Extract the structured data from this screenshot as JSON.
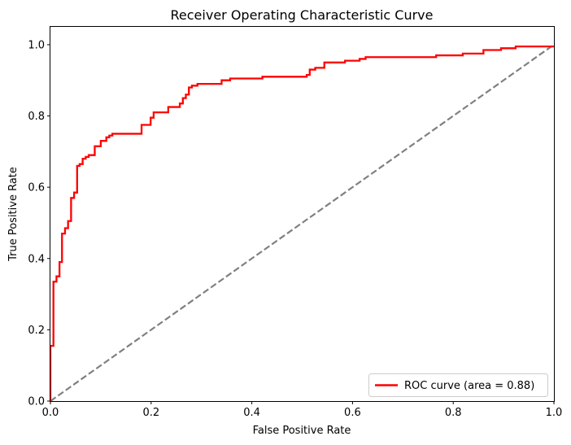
{
  "chart_data": {
    "type": "line",
    "title": "Receiver Operating Characteristic Curve",
    "xlabel": "False Positive Rate",
    "ylabel": "True Positive Rate",
    "xlim": [
      0.0,
      1.0
    ],
    "ylim": [
      0.0,
      1.05
    ],
    "xticks": [
      "0.0",
      "0.2",
      "0.4",
      "0.6",
      "0.8",
      "1.0"
    ],
    "xtick_values": [
      0.0,
      0.2,
      0.4,
      0.6,
      0.8,
      1.0
    ],
    "yticks": [
      "0.0",
      "0.2",
      "0.4",
      "0.6",
      "0.8",
      "1.0"
    ],
    "ytick_values": [
      0.0,
      0.2,
      0.4,
      0.6,
      0.8,
      1.0
    ],
    "grid": false,
    "legend_placement": "lower-right",
    "series": [
      {
        "name": "ROC curve (area = 0.88)",
        "color": "#ff0000",
        "style": "solid",
        "x": [
          0.0,
          0.0,
          0.006,
          0.006,
          0.012,
          0.012,
          0.018,
          0.018,
          0.023,
          0.023,
          0.029,
          0.029,
          0.035,
          0.035,
          0.041,
          0.041,
          0.047,
          0.047,
          0.053,
          0.053,
          0.058,
          0.058,
          0.064,
          0.064,
          0.07,
          0.07,
          0.076,
          0.076,
          0.088,
          0.088,
          0.1,
          0.1,
          0.111,
          0.111,
          0.117,
          0.117,
          0.123,
          0.123,
          0.135,
          0.135,
          0.181,
          0.181,
          0.199,
          0.199,
          0.205,
          0.205,
          0.234,
          0.234,
          0.257,
          0.257,
          0.263,
          0.263,
          0.269,
          0.269,
          0.275,
          0.275,
          0.281,
          0.281,
          0.292,
          0.292,
          0.34,
          0.34,
          0.357,
          0.357,
          0.363,
          0.363,
          0.421,
          0.421,
          0.509,
          0.509,
          0.515,
          0.515,
          0.526,
          0.526,
          0.544,
          0.544,
          0.585,
          0.585,
          0.614,
          0.614,
          0.626,
          0.626,
          0.766,
          0.766,
          0.819,
          0.819,
          0.86,
          0.86,
          0.895,
          0.895,
          0.924,
          0.924,
          1.0
        ],
        "y": [
          0.0,
          0.155,
          0.155,
          0.335,
          0.335,
          0.35,
          0.35,
          0.39,
          0.39,
          0.47,
          0.47,
          0.485,
          0.485,
          0.505,
          0.505,
          0.57,
          0.57,
          0.585,
          0.585,
          0.66,
          0.66,
          0.665,
          0.665,
          0.68,
          0.68,
          0.685,
          0.685,
          0.69,
          0.69,
          0.715,
          0.715,
          0.73,
          0.73,
          0.74,
          0.74,
          0.745,
          0.745,
          0.75,
          0.75,
          0.75,
          0.75,
          0.775,
          0.775,
          0.795,
          0.795,
          0.81,
          0.81,
          0.825,
          0.825,
          0.835,
          0.835,
          0.85,
          0.85,
          0.86,
          0.86,
          0.88,
          0.88,
          0.885,
          0.885,
          0.89,
          0.89,
          0.9,
          0.9,
          0.905,
          0.905,
          0.905,
          0.905,
          0.91,
          0.91,
          0.915,
          0.915,
          0.93,
          0.93,
          0.935,
          0.935,
          0.95,
          0.95,
          0.955,
          0.955,
          0.96,
          0.96,
          0.965,
          0.965,
          0.97,
          0.97,
          0.975,
          0.975,
          0.985,
          0.985,
          0.99,
          0.99,
          0.995,
          0.995
        ]
      },
      {
        "color": "#808080",
        "style": "dashed",
        "x": [
          0.0,
          1.0
        ],
        "y": [
          0.0,
          1.0
        ]
      }
    ]
  }
}
